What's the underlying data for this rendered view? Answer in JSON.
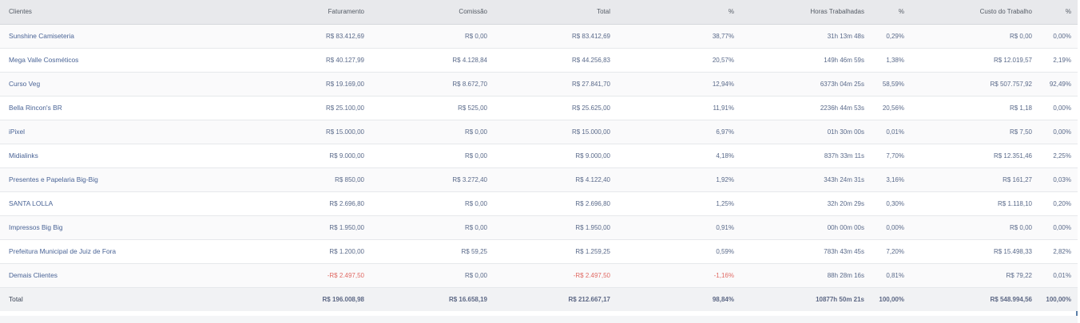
{
  "headers": {
    "clientes": "Clientes",
    "faturamento": "Faturamento",
    "comissao": "Comissão",
    "total": "Total",
    "percent1": "%",
    "horas": "Horas Trabalhadas",
    "percent2": "%",
    "custo": "Custo do Trabalho",
    "percent3": "%"
  },
  "rows": [
    {
      "name": "Sunshine Camiseteria",
      "faturamento": "R$ 83.412,69",
      "comissao": "R$ 0,00",
      "total": "R$ 83.412,69",
      "pct": "38,77%",
      "horas": "31h 13m 48s",
      "pct_horas": "0,29%",
      "custo": "R$ 0,00",
      "pct_custo": "0,00%"
    },
    {
      "name": "Mega Valle Cosméticos",
      "faturamento": "R$ 40.127,99",
      "comissao": "R$ 4.128,84",
      "total": "R$ 44.256,83",
      "pct": "20,57%",
      "horas": "149h 46m 59s",
      "pct_horas": "1,38%",
      "custo": "R$ 12.019,57",
      "pct_custo": "2,19%"
    },
    {
      "name": "Curso Veg",
      "faturamento": "R$ 19.169,00",
      "comissao": "R$ 8.672,70",
      "total": "R$ 27.841,70",
      "pct": "12,94%",
      "horas": "6373h 04m 25s",
      "pct_horas": "58,59%",
      "custo": "R$ 507.757,92",
      "pct_custo": "92,49%"
    },
    {
      "name": "Bella Rincon's BR",
      "faturamento": "R$ 25.100,00",
      "comissao": "R$ 525,00",
      "total": "R$ 25.625,00",
      "pct": "11,91%",
      "horas": "2236h 44m 53s",
      "pct_horas": "20,56%",
      "custo": "R$ 1,18",
      "pct_custo": "0,00%"
    },
    {
      "name": "iPixel",
      "faturamento": "R$ 15.000,00",
      "comissao": "R$ 0,00",
      "total": "R$ 15.000,00",
      "pct": "6,97%",
      "horas": "01h 30m 00s",
      "pct_horas": "0,01%",
      "custo": "R$ 7,50",
      "pct_custo": "0,00%"
    },
    {
      "name": "Midialinks",
      "faturamento": "R$ 9.000,00",
      "comissao": "R$ 0,00",
      "total": "R$ 9.000,00",
      "pct": "4,18%",
      "horas": "837h 33m 11s",
      "pct_horas": "7,70%",
      "custo": "R$ 12.351,46",
      "pct_custo": "2,25%"
    },
    {
      "name": "Presentes e Papelaria Big-Big",
      "faturamento": "R$ 850,00",
      "comissao": "R$ 3.272,40",
      "total": "R$ 4.122,40",
      "pct": "1,92%",
      "horas": "343h 24m 31s",
      "pct_horas": "3,16%",
      "custo": "R$ 161,27",
      "pct_custo": "0,03%"
    },
    {
      "name": "SANTA LOLLA",
      "faturamento": "R$ 2.696,80",
      "comissao": "R$ 0,00",
      "total": "R$ 2.696,80",
      "pct": "1,25%",
      "horas": "32h 20m 29s",
      "pct_horas": "0,30%",
      "custo": "R$ 1.118,10",
      "pct_custo": "0,20%"
    },
    {
      "name": "Impressos Big Big",
      "faturamento": "R$ 1.950,00",
      "comissao": "R$ 0,00",
      "total": "R$ 1.950,00",
      "pct": "0,91%",
      "horas": "00h 00m 00s",
      "pct_horas": "0,00%",
      "custo": "R$ 0,00",
      "pct_custo": "0,00%"
    },
    {
      "name": "Prefeitura Municipal de Juiz de Fora",
      "faturamento": "R$ 1.200,00",
      "comissao": "R$ 59,25",
      "total": "R$ 1.259,25",
      "pct": "0,59%",
      "horas": "783h 43m 45s",
      "pct_horas": "7,20%",
      "custo": "R$ 15.498,33",
      "pct_custo": "2,82%"
    },
    {
      "name": "Demais Clientes",
      "faturamento": "-R$ 2.497,50",
      "comissao": "R$ 0,00",
      "total": "-R$ 2.497,50",
      "pct": "-1,16%",
      "horas": "88h 28m 16s",
      "pct_horas": "0,81%",
      "custo": "R$ 79,22",
      "pct_custo": "0,01%",
      "negative": true
    }
  ],
  "totals": {
    "label": "Total",
    "faturamento": "R$ 196.008,98",
    "comissao": "R$ 16.658,19",
    "total": "R$ 212.667,17",
    "pct": "98,84%",
    "horas": "10877h 50m 21s",
    "pct_horas": "100,00%",
    "custo": "R$ 548.994,56",
    "pct_custo": "100,00%"
  },
  "colors": {
    "header_bg": "#e8e9ec",
    "link": "#4a6496",
    "negative": "#e06a64",
    "accent_border": "#5b7fa8"
  }
}
